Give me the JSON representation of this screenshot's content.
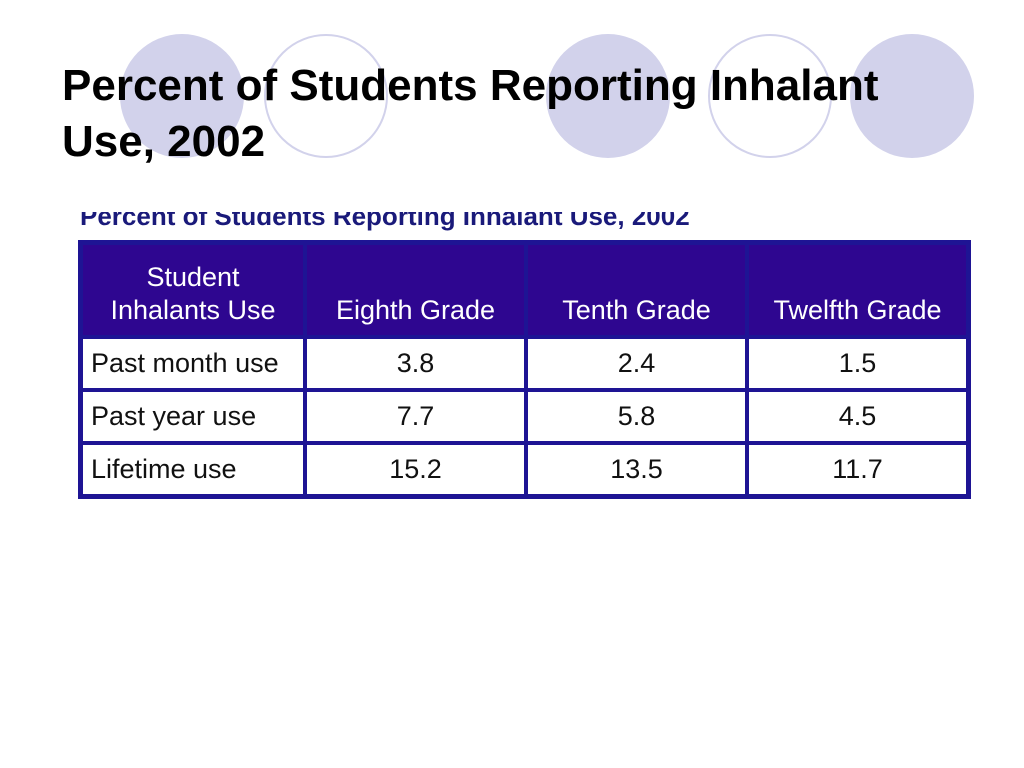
{
  "slide": {
    "title": "Percent of Students Reporting Inhalant Use, 2002",
    "table_caption": "Percent of Students Reporting Inhalant Use, 2002",
    "decor_fill_color": "#d2d2eb",
    "table_header_color": "#2e0690",
    "table_border_color": "#1e1494"
  },
  "table": {
    "header": {
      "label_line1": "Student",
      "label_line2": "Inhalants Use",
      "columns": [
        "Eighth Grade",
        "Tenth Grade",
        "Twelfth Grade"
      ]
    },
    "rows": [
      {
        "label": "Past month use",
        "values": [
          "3.8",
          "2.4",
          "1.5"
        ]
      },
      {
        "label": "Past year use",
        "values": [
          "7.7",
          "5.8",
          "4.5"
        ]
      },
      {
        "label": "Lifetime use",
        "values": [
          "15.2",
          "13.5",
          "11.7"
        ]
      }
    ]
  }
}
